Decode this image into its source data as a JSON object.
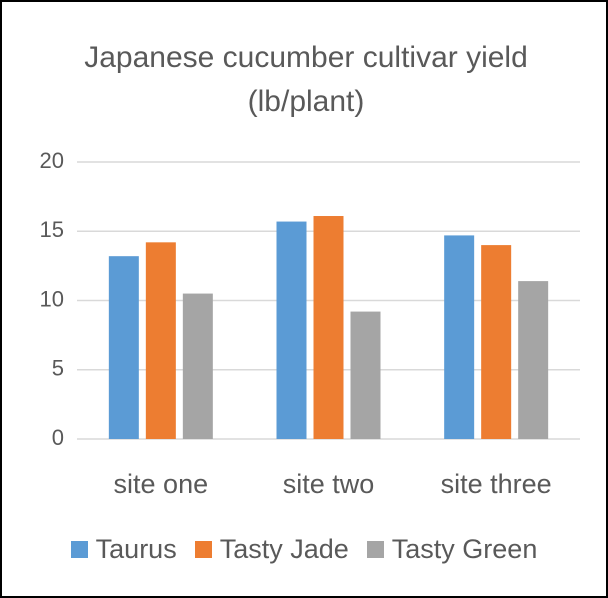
{
  "chart_data": {
    "type": "bar",
    "title": "Japanese cucumber cultivar yield (lb/plant)",
    "categories": [
      "site one",
      "site two",
      "site three"
    ],
    "series": [
      {
        "name": "Taurus",
        "color": "#5b9bd5",
        "values": [
          13.2,
          15.7,
          14.7
        ]
      },
      {
        "name": "Tasty Jade",
        "color": "#ed7d31",
        "values": [
          14.2,
          16.1,
          14.0
        ]
      },
      {
        "name": "Tasty Green",
        "color": "#a5a5a5",
        "values": [
          10.5,
          9.2,
          11.4
        ]
      }
    ],
    "ylim": [
      0,
      20
    ],
    "yticks": [
      0,
      5,
      10,
      15,
      20
    ],
    "grid": true,
    "legend": "bottom"
  }
}
